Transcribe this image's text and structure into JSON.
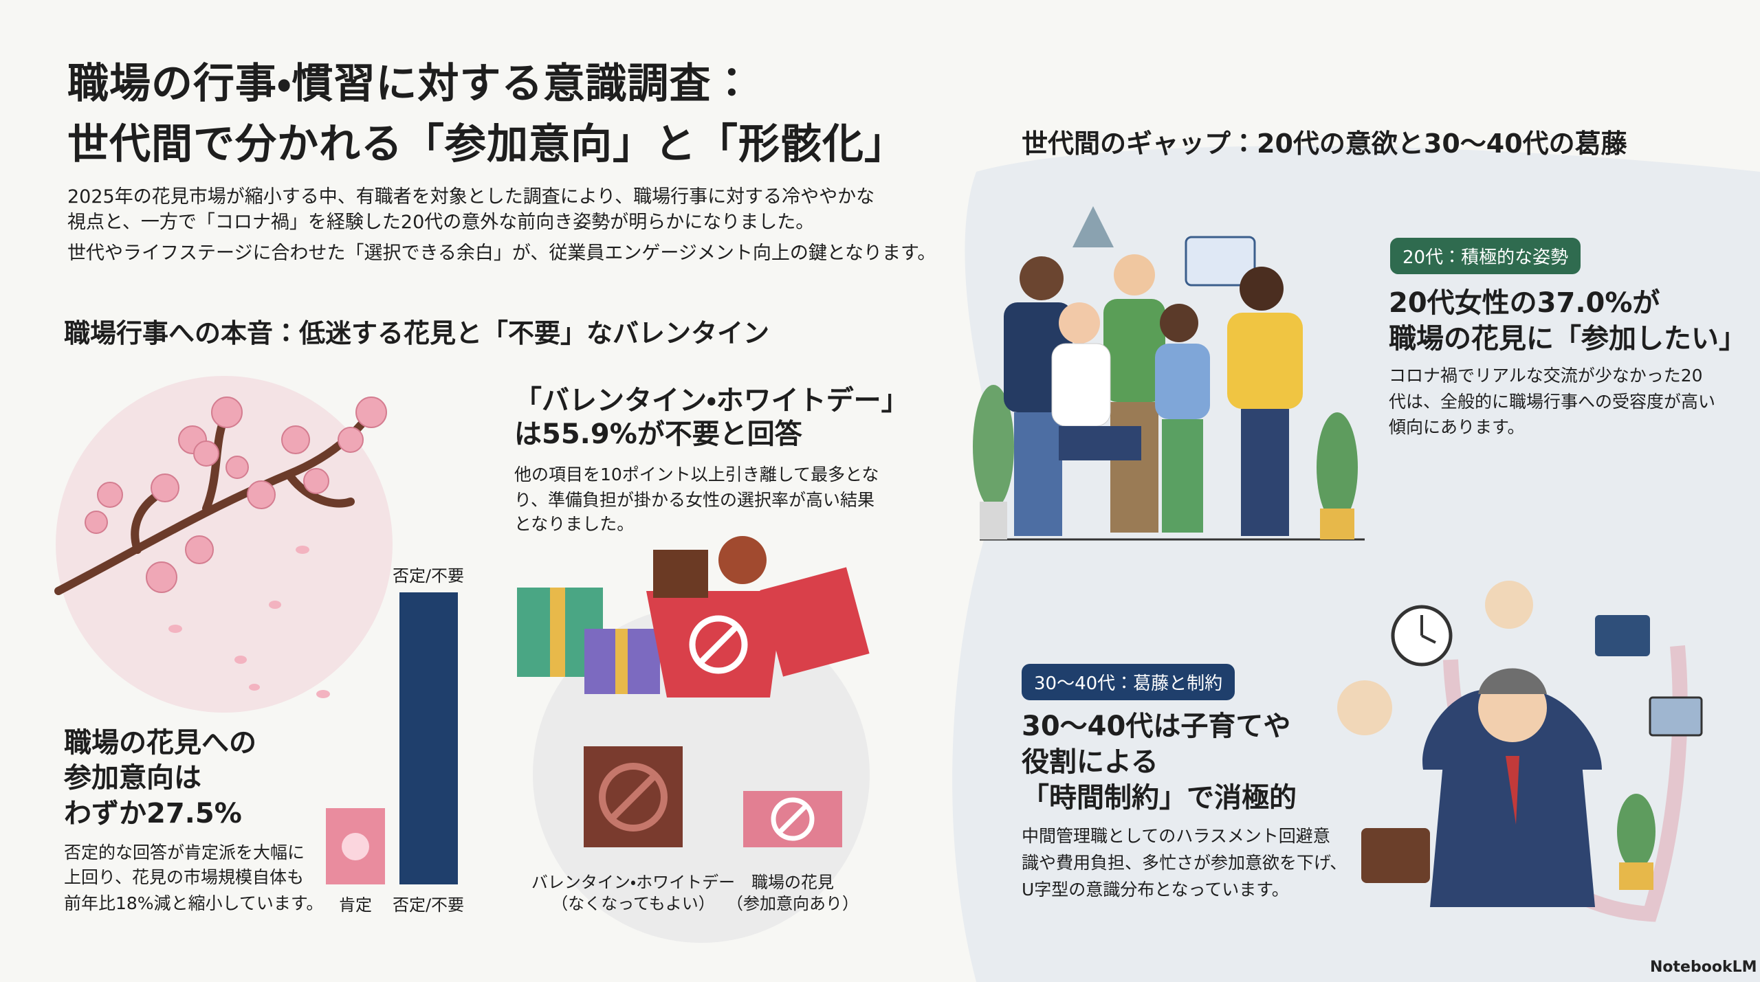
{
  "header": {
    "title": [
      "職場の行事・慣習に対する意識調査：",
      "世代間で分かれる「参加意向」と「形骸化」"
    ],
    "intro": [
      "2025年の花見市場が縮小する中、有職者を対象とした調査により、職場行事に対する冷ややかな",
      "視点と、一方で「コロナ禍」を経験した20代の意外な前向き姿勢が明らかになりました。",
      "世代やライフステージに合わせた「選択できる余白」が、従業員エンゲージメント向上の鍵となります。"
    ]
  },
  "left_section": {
    "heading": "職場行事への本音：低迷する花見と「不要」なバレンタイン",
    "hanami": {
      "headline": [
        "職場の花見への",
        "参加意向は",
        "わずか27.5%"
      ],
      "body": [
        "否定的な回答が肯定派を大幅に",
        "上回り、花見の市場規模自体も",
        "前年比18%減と縮小しています。"
      ],
      "bar_labels": [
        "肯定",
        "否定/不要"
      ],
      "bar_top_label": "否定/不要"
    },
    "valentine": {
      "headline": [
        "「バレンタイン・ホワイトデー」",
        "は55.9%が不要と回答"
      ],
      "body": [
        "他の項目を10ポイント以上引き離して最多とな",
        "り、準備負担が掛かる女性の選択率が高い結果",
        "となりました。"
      ],
      "bar_labels": [
        [
          "バレンタイン・ホワイトデー",
          "（なくなってもよい）"
        ],
        [
          "職場の花見",
          "（参加意向あり）"
        ]
      ]
    }
  },
  "right_section": {
    "heading": "世代間のギャップ：20代の意欲と30〜40代の葛藤",
    "twenties": {
      "badge": "20代：積極的な姿勢",
      "headline": [
        "20代女性の37.0%が",
        "職場の花見に「参加したい」"
      ],
      "body": [
        "コロナ禍でリアルな交流が少なかった20",
        "代は、全般的に職場行事への受容度が高い",
        "傾向にあります。"
      ]
    },
    "thirties_forties": {
      "badge": "30〜40代：葛藤と制約",
      "headline": [
        "30〜40代は子育てや",
        "役割による",
        "「時間制約」で消極的"
      ],
      "body": [
        "中間管理職としてのハラスメント回避意",
        "識や費用負担、多忙さが参加意欲を下げ、",
        "U字型の意識分布となっています。"
      ]
    }
  },
  "footer": {
    "logo": "NotebookLM"
  }
}
